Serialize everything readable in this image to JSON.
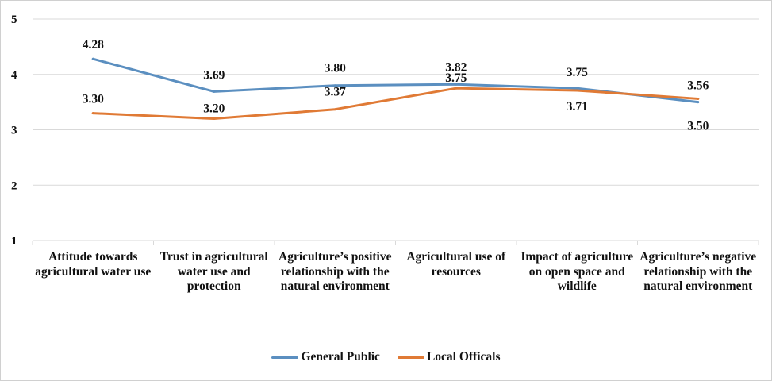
{
  "chart_data": {
    "type": "line",
    "title": "",
    "xlabel": "",
    "ylabel": "",
    "ylim": [
      1,
      5
    ],
    "yticks": [
      1,
      2,
      3,
      4,
      5
    ],
    "grid": true,
    "legend_placement": "bottom",
    "categories": [
      "Attitude towards agricultural water use",
      "Trust in agricultural water use and protection",
      "Agriculture’s positive relationship with the natural environment",
      "Agricultural use of resources",
      "Impact of agriculture on open space and wildlife",
      "Agriculture’s negative relationship with the natural environment"
    ],
    "series": [
      {
        "name": "General Public",
        "color": "#5b8fc0",
        "values": [
          4.28,
          3.69,
          3.8,
          3.82,
          3.75,
          3.5
        ],
        "labels": [
          "4.28",
          "3.69",
          "3.80",
          "3.82",
          "3.75",
          "3.50"
        ]
      },
      {
        "name": "Local Officals",
        "color": "#e07a35",
        "values": [
          3.3,
          3.2,
          3.37,
          3.75,
          3.71,
          3.56
        ],
        "labels": [
          "3.30",
          "3.20",
          "3.37",
          "3.75",
          "3.71",
          "3.56"
        ]
      }
    ]
  }
}
